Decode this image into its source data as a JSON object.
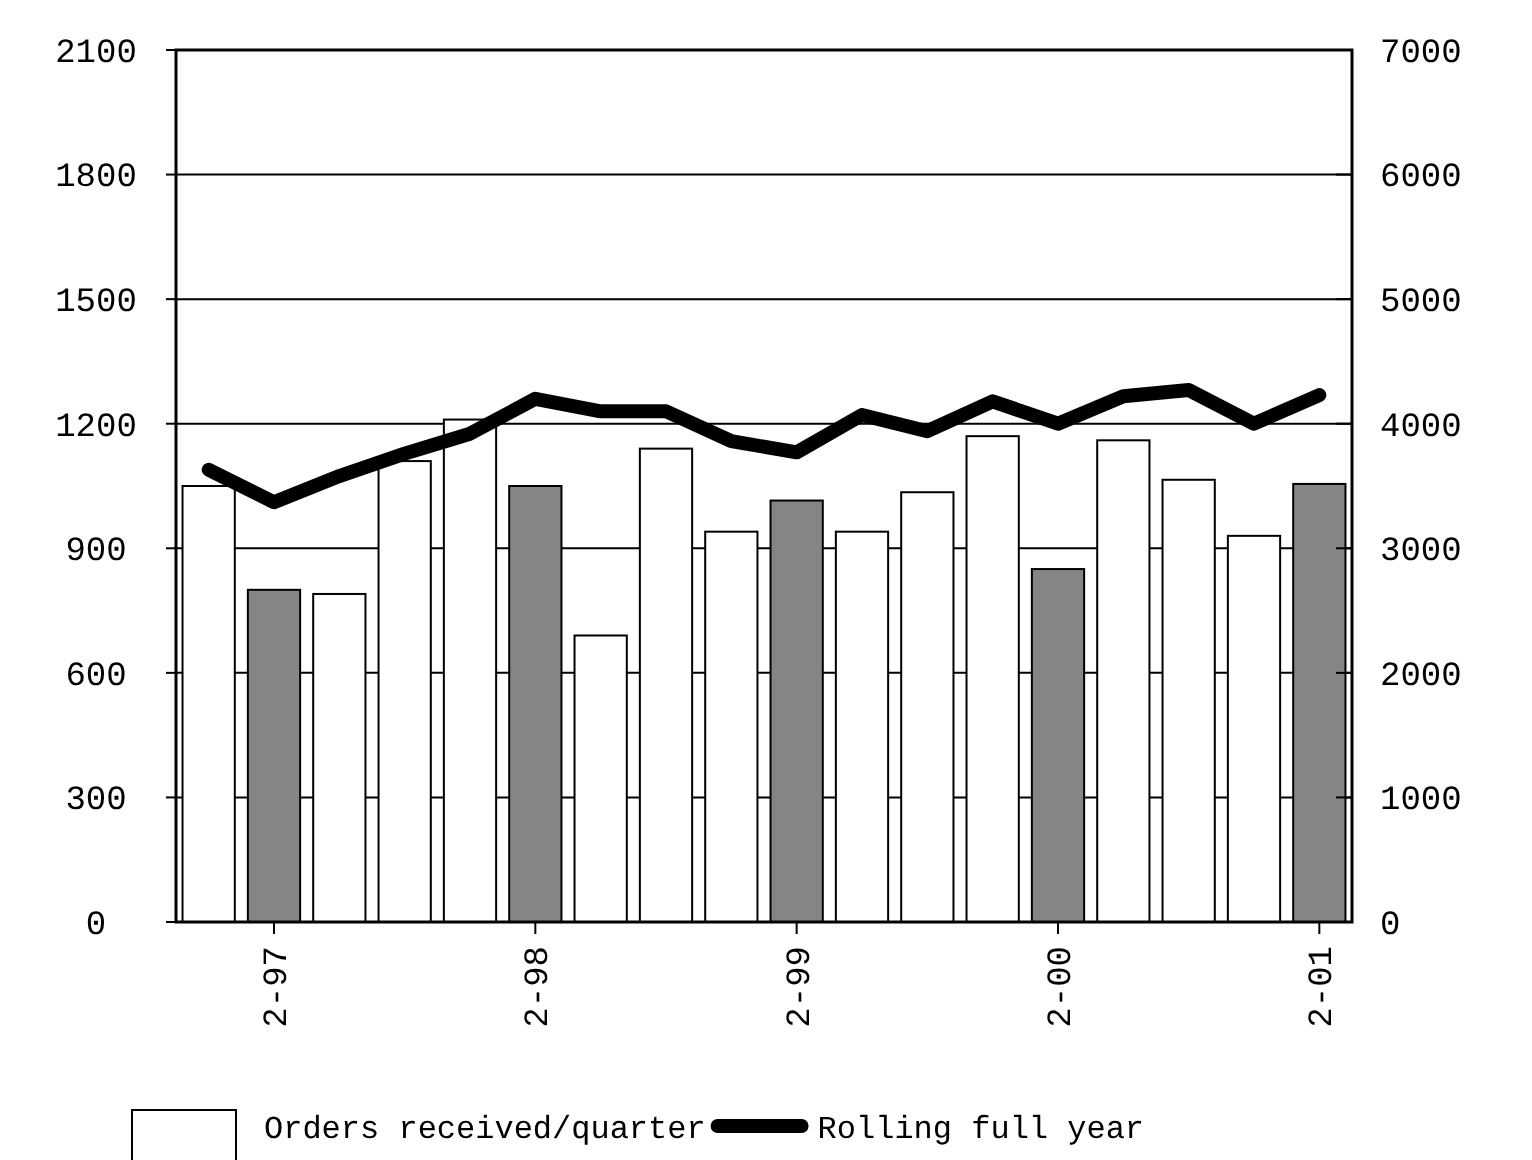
{
  "chart_data": {
    "type": "bar",
    "categories": [
      null,
      "2-97",
      null,
      null,
      null,
      "2-98",
      null,
      null,
      null,
      "2-99",
      null,
      null,
      null,
      "2-00",
      null,
      null,
      null,
      "2-01"
    ],
    "series": [
      {
        "name": "Orders received/quarter",
        "color": "#ffffff",
        "colors": [
          "#ffffff",
          "#858585",
          "#ffffff",
          "#ffffff",
          "#ffffff",
          "#858585",
          "#ffffff",
          "#ffffff",
          "#ffffff",
          "#858585",
          "#ffffff",
          "#ffffff",
          "#ffffff",
          "#858585",
          "#ffffff",
          "#ffffff",
          "#ffffff",
          "#858585"
        ],
        "values": [
          1050,
          800,
          790,
          1110,
          1210,
          1050,
          690,
          1140,
          940,
          1015,
          940,
          1035,
          1170,
          850,
          1160,
          1065,
          930,
          1055
        ]
      },
      {
        "name": "Rolling full year",
        "type": "line",
        "axis": "y2",
        "color": "#000000",
        "values": [
          3630,
          3370,
          3580,
          3760,
          3920,
          4200,
          4100,
          4100,
          3860,
          3770,
          4070,
          3940,
          4180,
          4000,
          4220,
          4270,
          4000,
          4230
        ]
      }
    ],
    "ylim": [
      0,
      2100
    ],
    "yticks": [
      0,
      300,
      600,
      900,
      1200,
      1500,
      1800,
      2100
    ],
    "y2lim": [
      0,
      7000
    ],
    "y2ticks": [
      0,
      1000,
      2000,
      3000,
      4000,
      5000,
      6000,
      7000
    ],
    "grid": "y",
    "legend": "bottom",
    "line_style": "solid"
  }
}
